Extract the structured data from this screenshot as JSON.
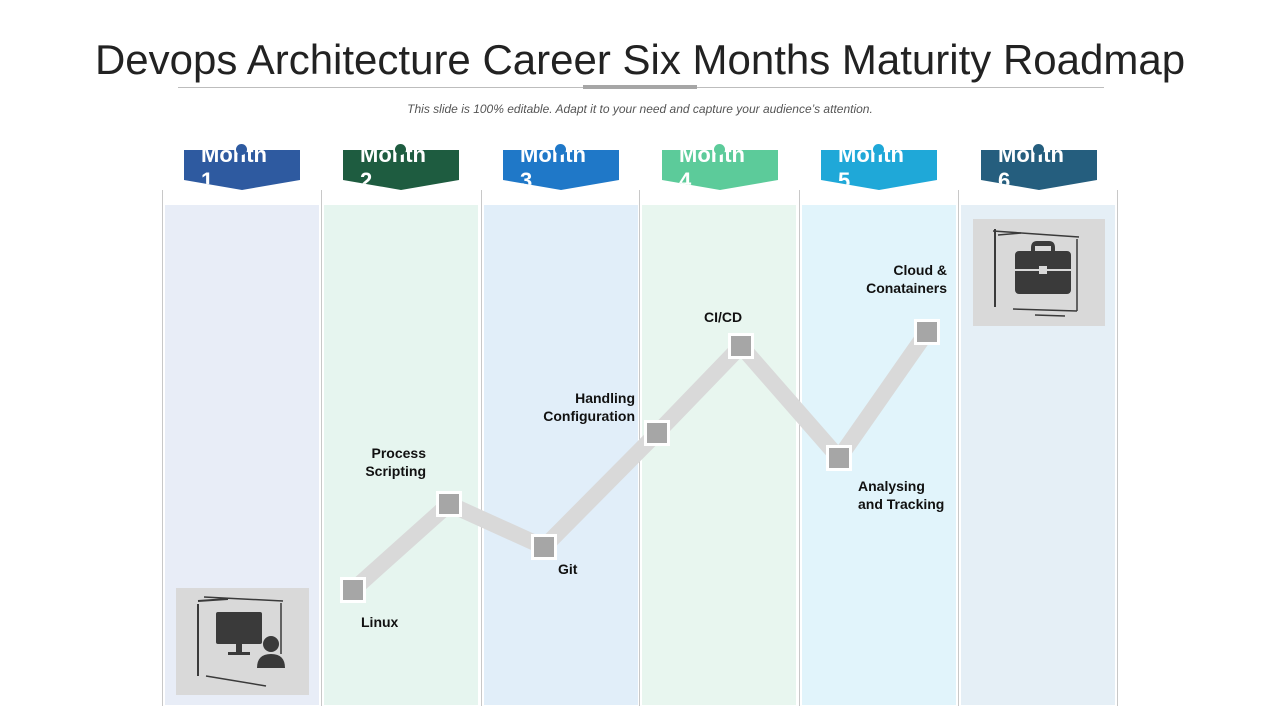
{
  "header": {
    "title": "Devops Architecture Career Six Months Maturity Roadmap",
    "subtitle": "This slide is 100% editable. Adapt it to your need and capture your audience’s attention."
  },
  "months": [
    {
      "label": "Month 1",
      "color": "#2e5aa0",
      "bg": "#e8edf7"
    },
    {
      "label": "Month 2",
      "color": "#1e5c40",
      "bg": "#e6f5ef"
    },
    {
      "label": "Month 3",
      "color": "#1f78c8",
      "bg": "#e1eef9"
    },
    {
      "label": "Month 4",
      "color": "#5ccb9a",
      "bg": "#e8f6ef"
    },
    {
      "label": "Month 5",
      "color": "#1fa8d8",
      "bg": "#e1f4fb"
    },
    {
      "label": "Month 6",
      "color": "#255e7e",
      "bg": "#e5eff6"
    }
  ],
  "milestones": [
    {
      "label": "Linux"
    },
    {
      "label": "Process Scripting"
    },
    {
      "label": "Git"
    },
    {
      "label": "Handling Configuration"
    },
    {
      "label": "CI/CD"
    },
    {
      "label": "Analysing and Tracking"
    },
    {
      "label": "Cloud & Conatainers"
    }
  ],
  "icons": {
    "start": "computer-user-icon",
    "end": "briefcase-icon"
  },
  "colors": {
    "path": "#d9d9d9",
    "marker": "#a6a6a6",
    "icon_bg": "#d9d9d9",
    "icon_fg": "#3a3a3a"
  }
}
